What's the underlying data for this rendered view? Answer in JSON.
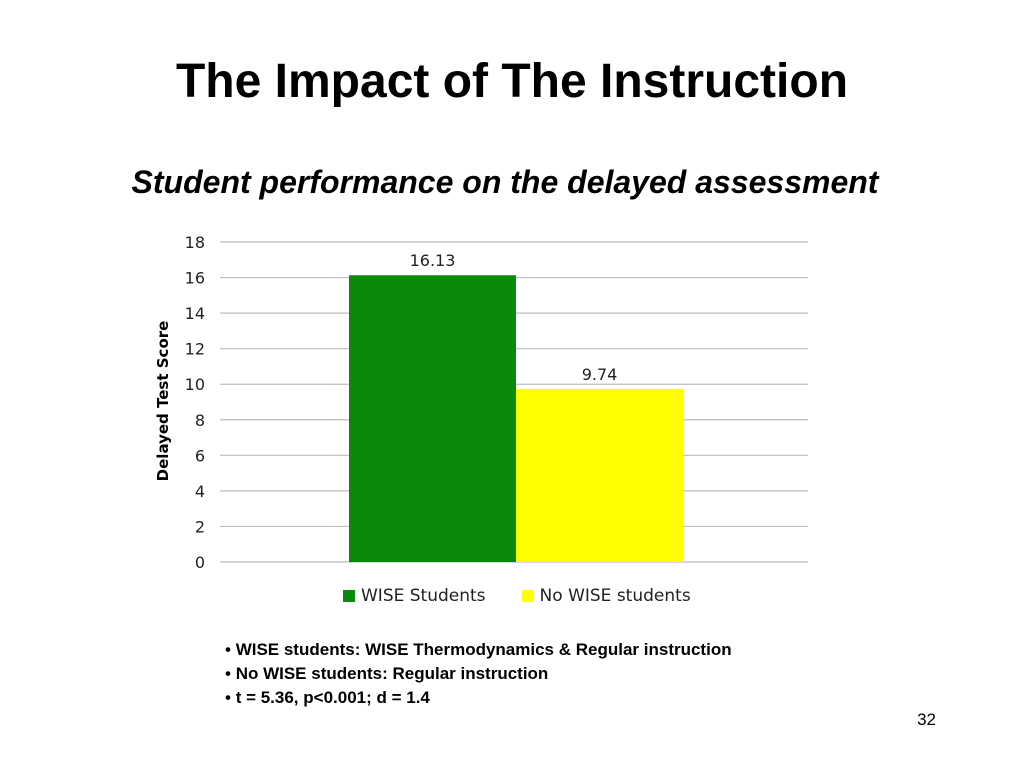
{
  "slide": {
    "title": "The Impact of The Instruction",
    "subtitle": "Student performance on the delayed assessment",
    "notes": [
      "WISE students: WISE Thermodynamics & Regular instruction",
      "No WISE students: Regular instruction",
      "t = 5.36, p<0.001; d = 1.4"
    ],
    "page_number": "32"
  },
  "chart_data": {
    "type": "bar",
    "title": "",
    "xlabel": "",
    "ylabel": "Delayed Test Score",
    "ylim": [
      0,
      18
    ],
    "yticks": [
      0,
      2,
      4,
      6,
      8,
      10,
      12,
      14,
      16,
      18
    ],
    "grid": true,
    "legend_position": "bottom",
    "categories": [
      ""
    ],
    "series": [
      {
        "name": "WISE Students",
        "values": [
          16.13
        ],
        "label": "16.13",
        "color": "#0a8a0a"
      },
      {
        "name": "No WISE students",
        "values": [
          9.74
        ],
        "label": "9.74",
        "color": "#ffff00"
      }
    ]
  }
}
